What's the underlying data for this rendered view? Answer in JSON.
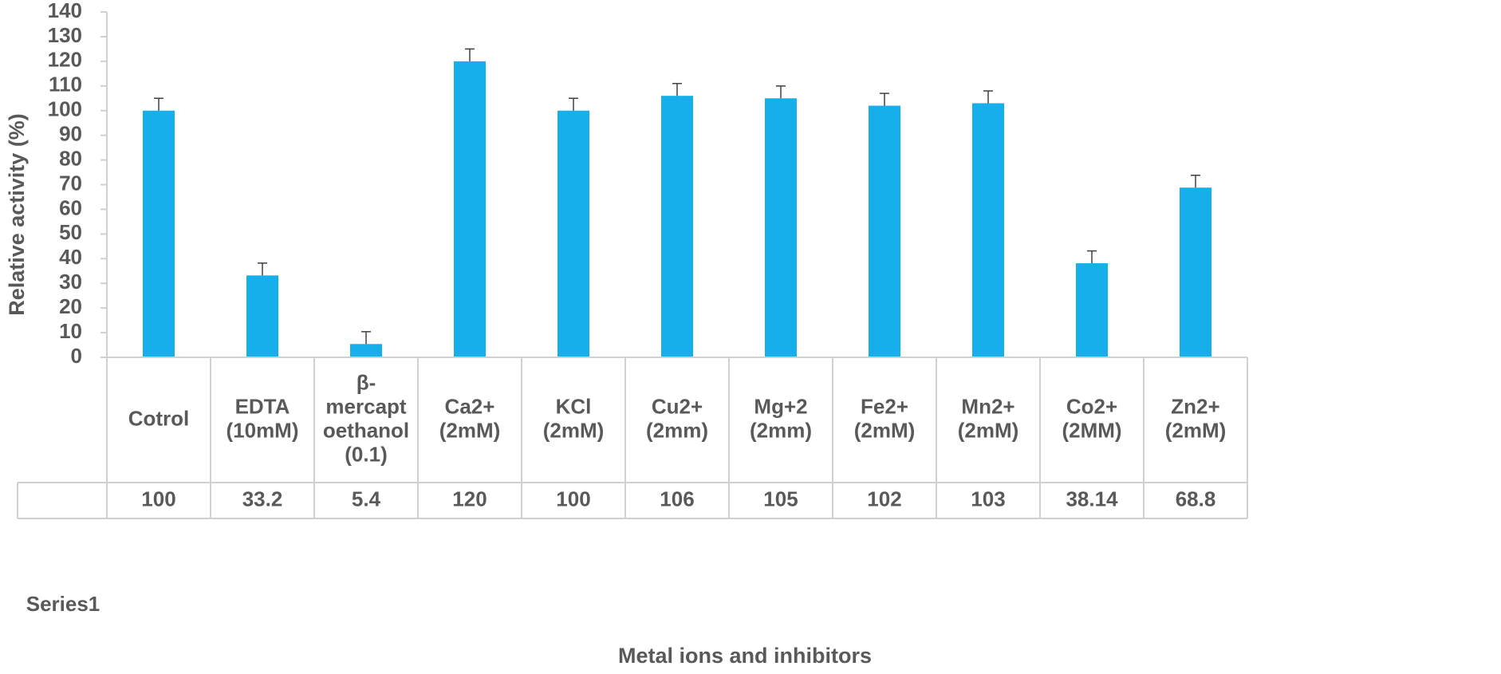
{
  "chart_data": {
    "type": "bar",
    "title": "",
    "xlabel": "Metal ions and inhibitors",
    "ylabel": "Relative activity (%)",
    "ylim": [
      0,
      140
    ],
    "ytick_step": 10,
    "grid": false,
    "legend": "data table row",
    "categories": [
      [
        "Cotrol"
      ],
      [
        "EDTA",
        "(10mM)"
      ],
      [
        "β-",
        "mercapt",
        "oethanol",
        "(0.1)"
      ],
      [
        "Ca2+",
        "(2mM)"
      ],
      [
        "KCl",
        "(2mM)"
      ],
      [
        "Cu2+",
        "(2mm)"
      ],
      [
        "Mg+2",
        "(2mm)"
      ],
      [
        "Fe2+",
        "(2mM)"
      ],
      [
        "Mn2+",
        "(2mM)"
      ],
      [
        "Co2+",
        "(2MM)"
      ],
      [
        "Zn2+",
        "(2mM)"
      ]
    ],
    "series": [
      {
        "name": "Series1",
        "values": [
          100,
          33.2,
          5.4,
          120,
          100,
          106,
          105,
          102,
          103,
          38.14,
          68.8
        ],
        "value_labels": [
          "100",
          "33.2",
          "5.4",
          "120",
          "100",
          "106",
          "105",
          "102",
          "103",
          "38.14",
          "68.8"
        ],
        "error_bars": [
          5,
          5,
          5,
          5,
          5,
          5,
          5,
          5,
          5,
          5,
          5
        ],
        "color": "#16AFEB"
      }
    ]
  },
  "colors": {
    "bar": "#16AFEB",
    "axis": "#D0D0D0",
    "text": "#595959",
    "errorbar": "#404040"
  }
}
